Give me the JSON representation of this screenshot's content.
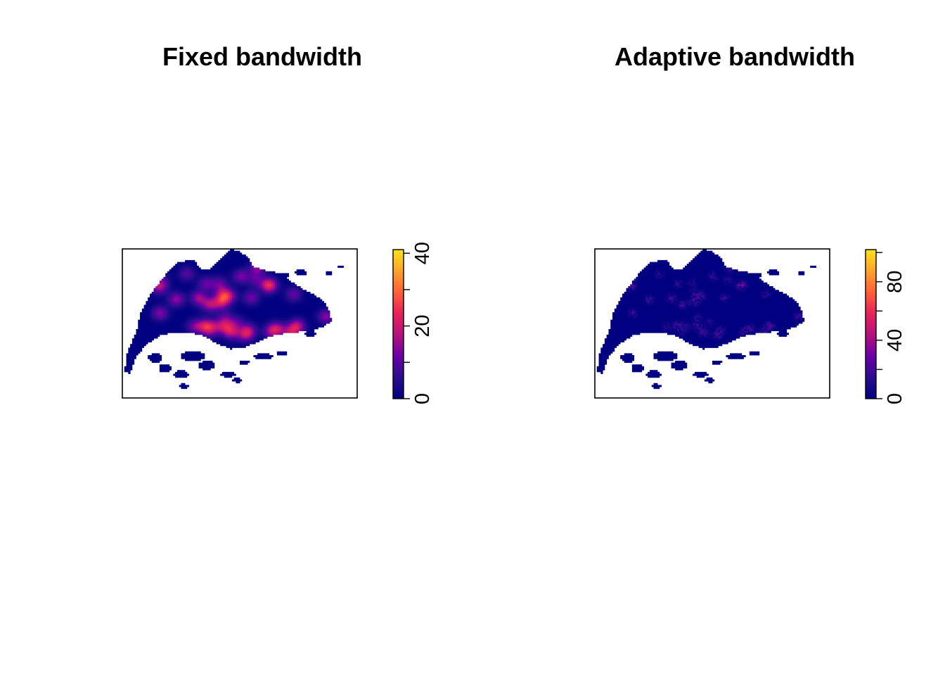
{
  "chart_data": [
    {
      "type": "heatmap",
      "title": "Fixed bandwidth",
      "legend": {
        "ticks": [
          0,
          10,
          20,
          30,
          40
        ],
        "tick_labels": [
          "0",
          "20",
          "40"
        ],
        "range": [
          0,
          41
        ],
        "placement": "right"
      },
      "colors": [
        "#000080",
        "#2a0e8e",
        "#6a00a8",
        "#b3127f",
        "#e8205a",
        "#ff5f3a",
        "#ffa22a",
        "#ffe11a"
      ],
      "hotspot_max": 32,
      "grid": false
    },
    {
      "type": "heatmap",
      "title": "Adaptive bandwidth",
      "legend": {
        "ticks": [
          0,
          20,
          40,
          60,
          80,
          100
        ],
        "tick_labels": [
          "0",
          "40",
          "80"
        ],
        "range": [
          0,
          102
        ],
        "placement": "right"
      },
      "colors": [
        "#000080",
        "#2a0e8e",
        "#6a00a8",
        "#b3127f",
        "#e8205a",
        "#ff5f3a",
        "#ffa22a",
        "#ffe11a"
      ],
      "hotspot_max": 40,
      "grid": false
    }
  ]
}
